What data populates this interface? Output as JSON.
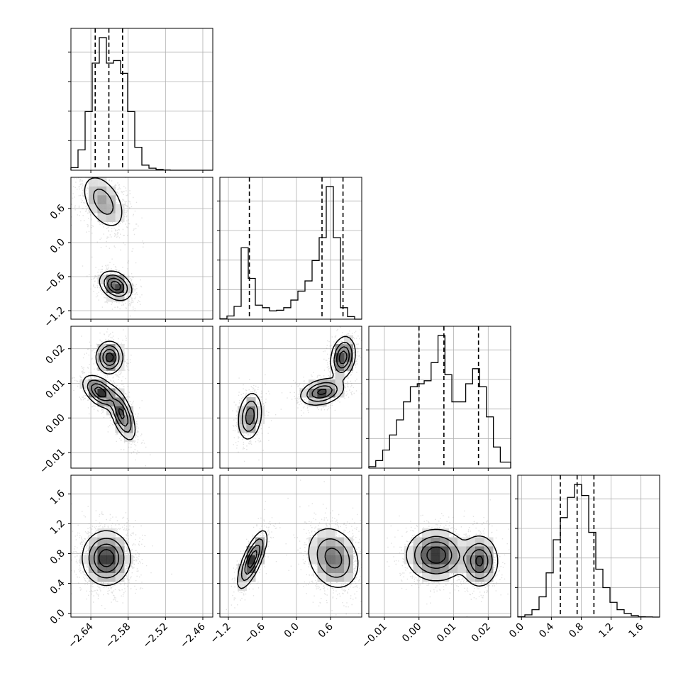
{
  "chart_data": {
    "type": "scatter",
    "description_type": "corner",
    "grid": true,
    "n_params": 4,
    "params": [
      {
        "range": [
          -2.672,
          -2.444
        ],
        "ticks": [
          -2.64,
          -2.58,
          -2.52,
          -2.46
        ],
        "tick_labels": [
          "−2.64",
          "−2.58",
          "−2.52",
          "−2.46"
        ],
        "quantiles": [
          -2.633,
          -2.611,
          -2.589
        ],
        "hist": {
          "edges": [
            -2.672,
            -2.6606,
            -2.6492,
            -2.6378,
            -2.6264,
            -2.615,
            -2.6036,
            -2.5922,
            -2.5808,
            -2.5694,
            -2.558,
            -2.5466,
            -2.5352,
            -2.5238,
            -2.5124,
            -2.501,
            -2.4896,
            -2.4782,
            -2.4668,
            -2.4554,
            -2.444
          ],
          "counts": [
            10,
            80,
            230,
            420,
            520,
            420,
            430,
            380,
            230,
            90,
            20,
            8,
            3,
            1,
            0,
            0,
            0,
            0,
            0,
            0
          ]
        }
      },
      {
        "range": [
          -1.35,
          1.15
        ],
        "ticks": [
          -1.2,
          -0.6,
          0.0,
          0.6
        ],
        "tick_labels": [
          "−1.2",
          "−0.6",
          "0.0",
          "0.6"
        ],
        "quantiles": [
          -0.83,
          0.45,
          0.82
        ],
        "hist": {
          "edges": [
            -1.35,
            -1.225,
            -1.1,
            -0.975,
            -0.85,
            -0.725,
            -0.6,
            -0.475,
            -0.35,
            -0.225,
            -0.1,
            0.025,
            0.15,
            0.275,
            0.4,
            0.525,
            0.65,
            0.775,
            0.9,
            1.025,
            1.15
          ],
          "counts": [
            3,
            25,
            100,
            560,
            320,
            110,
            90,
            65,
            70,
            90,
            150,
            220,
            300,
            460,
            640,
            1040,
            640,
            90,
            20,
            0
          ]
        }
      },
      {
        "range": [
          -0.0145,
          0.0265
        ],
        "ticks": [
          -0.01,
          0.0,
          0.01,
          0.02
        ],
        "tick_labels": [
          "−0.01",
          "0.00",
          "0.01",
          "0.02"
        ],
        "quantiles": [
          0.0,
          0.0072,
          0.0172
        ],
        "hist": {
          "edges": [
            -0.0145,
            -0.0125,
            -0.0105,
            -0.0085,
            -0.0065,
            -0.0045,
            -0.0025,
            -0.0005,
            0.0015,
            0.0035,
            0.0055,
            0.0075,
            0.0095,
            0.0115,
            0.0135,
            0.0155,
            0.0175,
            0.0195,
            0.0215,
            0.0235,
            0.0265
          ],
          "counts": [
            5,
            25,
            60,
            110,
            160,
            220,
            270,
            280,
            290,
            350,
            440,
            310,
            220,
            220,
            280,
            330,
            270,
            170,
            70,
            20
          ]
        }
      },
      {
        "range": [
          -0.05,
          1.85
        ],
        "ticks": [
          0.0,
          0.4,
          0.8,
          1.2,
          1.6
        ],
        "tick_labels": [
          "0.0",
          "0.4",
          "0.8",
          "1.2",
          "1.6"
        ],
        "quantiles": [
          0.52,
          0.745,
          0.97
        ],
        "hist": {
          "edges": [
            -0.05,
            0.045,
            0.14,
            0.235,
            0.33,
            0.425,
            0.52,
            0.615,
            0.71,
            0.805,
            0.9,
            0.995,
            1.09,
            1.185,
            1.28,
            1.375,
            1.47,
            1.565,
            1.66,
            1.755,
            1.85
          ],
          "counts": [
            2,
            12,
            40,
            110,
            240,
            420,
            540,
            650,
            720,
            660,
            460,
            260,
            160,
            80,
            40,
            20,
            8,
            2,
            1,
            0
          ]
        }
      }
    ],
    "pairs": [
      {
        "x": 0,
        "y": 1,
        "modes": [
          {
            "cx": -2.62,
            "cy": 0.72,
            "sx": 0.017,
            "sy": 0.24,
            "w": 0.55,
            "rho": -0.45
          },
          {
            "cx": -2.6,
            "cy": -0.76,
            "sx": 0.012,
            "sy": 0.12,
            "w": 0.45,
            "rho": -0.3
          }
        ]
      },
      {
        "x": 0,
        "y": 2,
        "modes": [
          {
            "cx": -2.61,
            "cy": 0.0175,
            "sx": 0.01,
            "sy": 0.0022,
            "w": 0.3,
            "rho": 0.0
          },
          {
            "cx": -2.625,
            "cy": 0.0075,
            "sx": 0.013,
            "sy": 0.0022,
            "w": 0.35,
            "rho": -0.5
          },
          {
            "cx": -2.59,
            "cy": 0.001,
            "sx": 0.01,
            "sy": 0.0035,
            "w": 0.35,
            "rho": -0.6
          }
        ]
      },
      {
        "x": 1,
        "y": 2,
        "modes": [
          {
            "cx": -0.82,
            "cy": 0.0005,
            "sx": 0.1,
            "sy": 0.0033,
            "w": 0.3,
            "rho": 0.2
          },
          {
            "cx": 0.45,
            "cy": 0.0075,
            "sx": 0.18,
            "sy": 0.0018,
            "w": 0.35,
            "rho": 0.3
          },
          {
            "cx": 0.82,
            "cy": 0.0175,
            "sx": 0.1,
            "sy": 0.0028,
            "w": 0.35,
            "rho": 0.2
          }
        ]
      },
      {
        "x": 0,
        "y": 3,
        "modes": [
          {
            "cx": -2.615,
            "cy": 0.74,
            "sx": 0.018,
            "sy": 0.17,
            "w": 1.0,
            "rho": 0.0
          }
        ]
      },
      {
        "x": 1,
        "y": 3,
        "modes": [
          {
            "cx": -0.78,
            "cy": 0.72,
            "sx": 0.12,
            "sy": 0.18,
            "w": 0.33,
            "rho": 0.75
          },
          {
            "cx": 0.65,
            "cy": 0.74,
            "sx": 0.22,
            "sy": 0.2,
            "w": 0.67,
            "rho": -0.2
          }
        ]
      },
      {
        "x": 2,
        "y": 3,
        "modes": [
          {
            "cx": 0.005,
            "cy": 0.78,
            "sx": 0.004,
            "sy": 0.16,
            "w": 0.65,
            "rho": 0.0
          },
          {
            "cx": 0.0175,
            "cy": 0.7,
            "sx": 0.0025,
            "sy": 0.16,
            "w": 0.35,
            "rho": 0.0
          }
        ]
      }
    ]
  }
}
